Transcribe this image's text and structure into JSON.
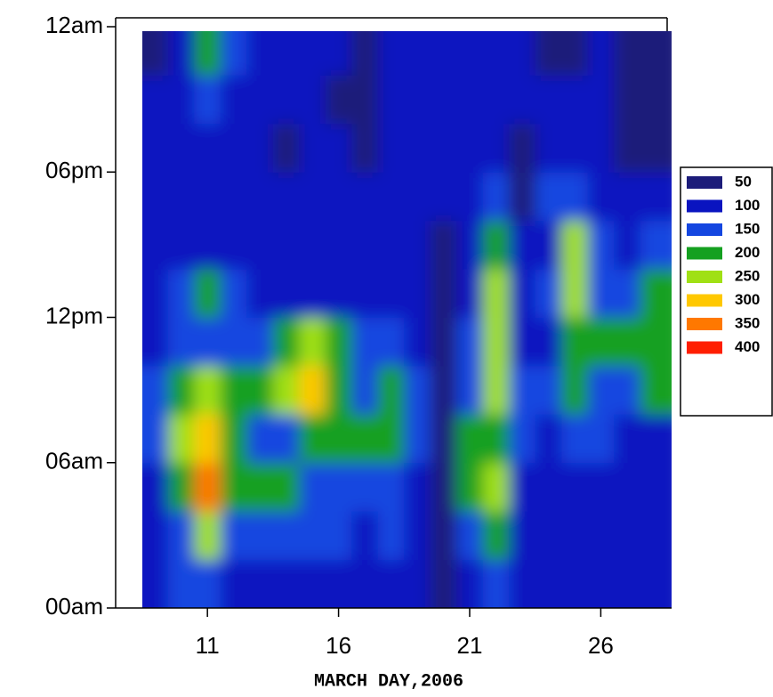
{
  "chart_data": {
    "type": "heatmap",
    "x_label": "MARCH DAY,2006",
    "x": [
      9,
      10,
      11,
      12,
      13,
      14,
      15,
      16,
      17,
      18,
      19,
      20,
      21,
      22,
      23,
      24,
      25,
      26,
      27,
      28
    ],
    "y": [
      1,
      3,
      5,
      7,
      9,
      11,
      13,
      15,
      17,
      19,
      21,
      23
    ],
    "z": [
      [
        100,
        150,
        150,
        100,
        100,
        100,
        100,
        100,
        100,
        100,
        100,
        50,
        100,
        150,
        100,
        100,
        100,
        100,
        100,
        100
      ],
      [
        100,
        150,
        250,
        150,
        150,
        150,
        150,
        150,
        100,
        150,
        100,
        50,
        150,
        200,
        100,
        100,
        100,
        100,
        100,
        100
      ],
      [
        100,
        200,
        350,
        200,
        200,
        200,
        150,
        150,
        150,
        150,
        100,
        50,
        200,
        250,
        100,
        100,
        100,
        100,
        100,
        100
      ],
      [
        150,
        250,
        300,
        200,
        150,
        150,
        200,
        200,
        200,
        200,
        150,
        50,
        200,
        200,
        150,
        100,
        150,
        150,
        100,
        100
      ],
      [
        150,
        200,
        250,
        200,
        200,
        250,
        300,
        200,
        150,
        200,
        150,
        50,
        150,
        250,
        150,
        150,
        200,
        150,
        150,
        200
      ],
      [
        100,
        150,
        150,
        150,
        150,
        200,
        250,
        200,
        150,
        150,
        100,
        50,
        150,
        250,
        100,
        100,
        200,
        200,
        200,
        200
      ],
      [
        100,
        150,
        200,
        150,
        100,
        100,
        100,
        100,
        100,
        100,
        100,
        50,
        100,
        250,
        100,
        150,
        250,
        150,
        150,
        200
      ],
      [
        100,
        100,
        100,
        100,
        100,
        100,
        100,
        100,
        100,
        100,
        100,
        50,
        100,
        200,
        100,
        100,
        250,
        150,
        100,
        150
      ],
      [
        100,
        100,
        100,
        100,
        100,
        100,
        100,
        100,
        100,
        100,
        100,
        100,
        100,
        150,
        50,
        150,
        150,
        100,
        100,
        100
      ],
      [
        100,
        100,
        100,
        100,
        100,
        50,
        100,
        100,
        50,
        100,
        100,
        100,
        100,
        100,
        50,
        100,
        100,
        100,
        50,
        50
      ],
      [
        100,
        100,
        150,
        100,
        100,
        100,
        100,
        50,
        50,
        100,
        100,
        100,
        100,
        100,
        100,
        100,
        100,
        100,
        50,
        50
      ],
      [
        50,
        100,
        200,
        150,
        100,
        100,
        100,
        100,
        50,
        100,
        100,
        100,
        100,
        100,
        100,
        50,
        50,
        100,
        50,
        50
      ]
    ],
    "xlim": [
      7.5,
      28.7
    ],
    "xticks": [
      11,
      16,
      21,
      26
    ],
    "ylim": [
      0,
      24
    ],
    "yticks": [
      {
        "value": 0,
        "label": "00am"
      },
      {
        "value": 6,
        "label": "06am"
      },
      {
        "value": 12,
        "label": "12pm"
      },
      {
        "value": 18,
        "label": "06pm"
      },
      {
        "value": 24,
        "label": "12am"
      }
    ],
    "levels": [
      50,
      100,
      150,
      200,
      250,
      300,
      350,
      400
    ],
    "colors": [
      "#1c1c7a",
      "#0a14c0",
      "#1446e0",
      "#14a020",
      "#a0e014",
      "#ffc800",
      "#ff7800",
      "#ff1e00"
    ]
  }
}
